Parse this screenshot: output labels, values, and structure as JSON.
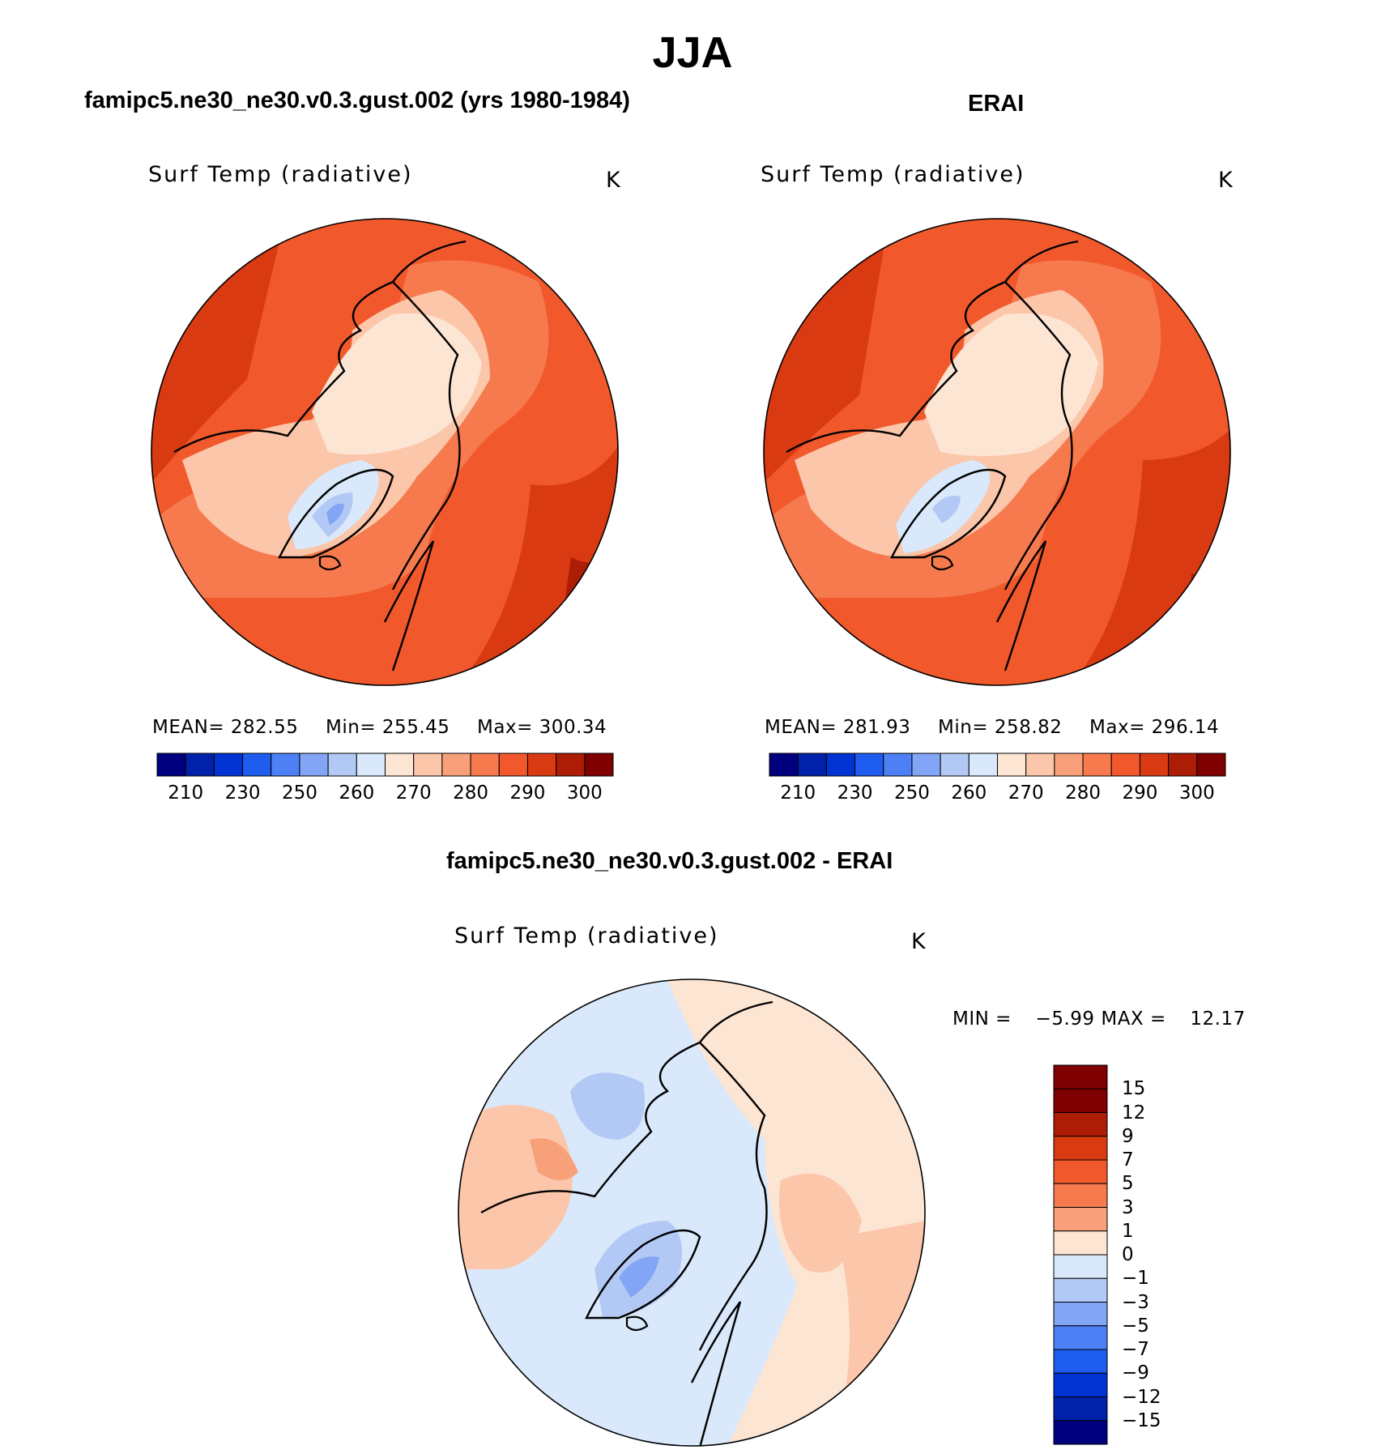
{
  "figure": {
    "season_title": "JJA"
  },
  "panels": [
    {
      "id": "model",
      "case_title": "famipc5.ne30_ne30.v0.3.gust.002 (yrs 1980-1984)",
      "variable": "Surf Temp (radiative)",
      "units": "K",
      "mean_label": "MEAN=",
      "mean": "282.55",
      "min_label": "Min=",
      "min": "255.45",
      "max_label": "Max=",
      "max": "300.34",
      "colorbar": {
        "colors": [
          "#00007f",
          "#0021a8",
          "#0033d1",
          "#1f5cf0",
          "#4d80f5",
          "#82a5f5",
          "#b3c9f5",
          "#d9e8fa",
          "#fde5d3",
          "#fbc6a9",
          "#f8a07a",
          "#f67a4e",
          "#f1592c",
          "#d93a12",
          "#ad1d06",
          "#7f0000"
        ],
        "tick_labels": [
          "210",
          "230",
          "250",
          "260",
          "270",
          "280",
          "290",
          "300"
        ]
      }
    },
    {
      "id": "obs",
      "case_title": "ERAI",
      "variable": "Surf Temp (radiative)",
      "units": "K",
      "mean_label": "MEAN=",
      "mean": "281.93",
      "min_label": "Min=",
      "min": "258.82",
      "max_label": "Max=",
      "max": "296.14",
      "colorbar": {
        "colors": [
          "#00007f",
          "#0021a8",
          "#0033d1",
          "#1f5cf0",
          "#4d80f5",
          "#82a5f5",
          "#b3c9f5",
          "#d9e8fa",
          "#fde5d3",
          "#fbc6a9",
          "#f8a07a",
          "#f67a4e",
          "#f1592c",
          "#d93a12",
          "#ad1d06",
          "#7f0000"
        ],
        "tick_labels": [
          "210",
          "230",
          "250",
          "260",
          "270",
          "280",
          "290",
          "300"
        ]
      }
    },
    {
      "id": "diff",
      "case_title": "famipc5.ne30_ne30.v0.3.gust.002 - ERAI",
      "variable": "Surf Temp (radiative)",
      "units": "K",
      "min_label": "MIN =",
      "min": "−5.99",
      "max_label": "MAX =",
      "max": "12.17",
      "colorbar": {
        "colors": [
          "#7f0000",
          "#ad1d06",
          "#d93a12",
          "#f1592c",
          "#f67a4e",
          "#f8a07a",
          "#fde5d3",
          "#d9e8fa",
          "#b3c9f5",
          "#82a5f5",
          "#4d80f5",
          "#1f5cf0",
          "#0033d1",
          "#0021a8",
          "#00007f"
        ],
        "tick_labels": [
          "15",
          "12",
          "9",
          "7",
          "5",
          "3",
          "1",
          "0",
          "−1",
          "−3",
          "−5",
          "−7",
          "−9",
          "−12",
          "−15"
        ]
      }
    }
  ]
}
